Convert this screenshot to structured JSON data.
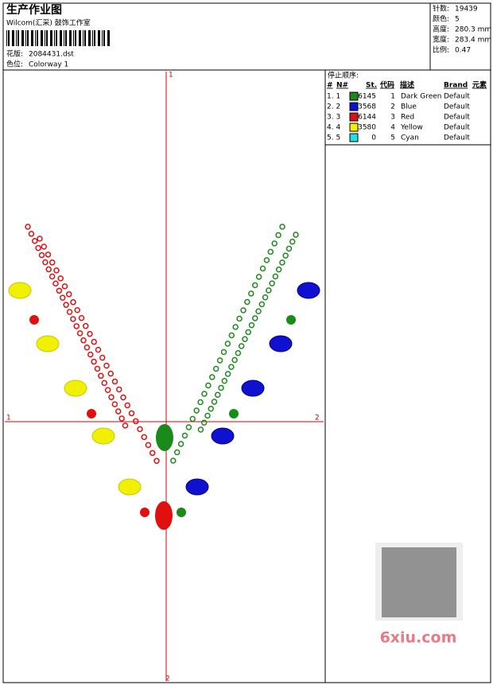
{
  "header": {
    "title": "生产作业图",
    "studio": "Wilcom(汇采) 鼓饰工作室",
    "design_label": "花版:",
    "design": "2084431.dst",
    "colorway_label": "色位:",
    "colorway": "Colorway 1"
  },
  "info": [
    {
      "label": "针数:",
      "value": "19439"
    },
    {
      "label": "颜色:",
      "value": "5"
    },
    {
      "label": "高度:",
      "value": "280.3 mm"
    },
    {
      "label": "宽度:",
      "value": "283.4 mm"
    },
    {
      "label": "比例:",
      "value": "0.47"
    }
  ],
  "table": {
    "heading": "停止顺序:",
    "columns": [
      "#",
      "N#",
      "St.",
      "代码",
      "描述",
      "Brand",
      "元素"
    ],
    "rows": [
      {
        "index": "1. 1",
        "color": "#1a8a1a",
        "stitches": 6145,
        "code": 1,
        "description": "Dark Green",
        "brand": "Default"
      },
      {
        "index": "2. 2",
        "color": "#1010d0",
        "stitches": 3568,
        "code": 2,
        "description": "Blue",
        "brand": "Default"
      },
      {
        "index": "3. 3",
        "color": "#e01010",
        "stitches": 6144,
        "code": 3,
        "description": "Red",
        "brand": "Default"
      },
      {
        "index": "4. 4",
        "color": "#f0f000",
        "stitches": 3580,
        "code": 4,
        "description": "Yellow",
        "brand": "Default"
      },
      {
        "index": "5. 5",
        "color": "#20e0e0",
        "stitches": 0,
        "code": 5,
        "description": "Cyan",
        "brand": "Default"
      }
    ]
  },
  "axis_labels": {
    "top": "1",
    "left": "1",
    "right": "2",
    "bottom": "2"
  },
  "watermark": "6xiu.com"
}
